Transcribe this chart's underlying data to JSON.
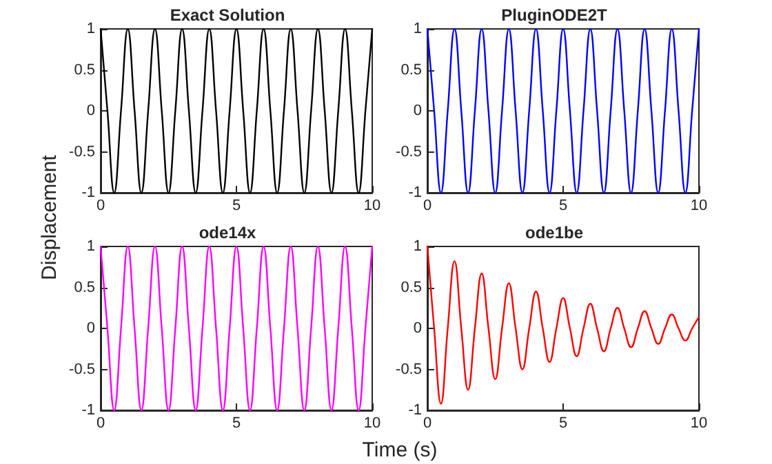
{
  "chart_data": [
    {
      "type": "line",
      "title": "Exact Solution",
      "x": [
        0,
        0.25,
        0.5,
        0.75,
        1,
        1.25,
        1.5,
        1.75,
        2,
        2.25,
        2.5,
        2.75,
        3,
        3.25,
        3.5,
        3.75,
        4,
        4.25,
        4.5,
        4.75,
        5,
        5.25,
        5.5,
        5.75,
        6,
        6.25,
        6.5,
        6.75,
        7,
        7.25,
        7.5,
        7.75,
        8,
        8.25,
        8.5,
        8.75,
        9,
        9.25,
        9.5,
        9.75,
        10
      ],
      "series": [
        {
          "color": "#000000",
          "values": [
            1,
            0,
            -1,
            0,
            1,
            0,
            -1,
            0,
            1,
            0,
            -1,
            0,
            1,
            0,
            -1,
            0,
            1,
            0,
            -1,
            0,
            1,
            0,
            -1,
            0,
            1,
            0,
            -1,
            0,
            1,
            0,
            -1,
            0,
            1,
            0,
            -1,
            0,
            1,
            0,
            -1,
            0,
            1
          ]
        }
      ],
      "xlim": [
        0,
        10
      ],
      "xticks": [
        0,
        5,
        10
      ],
      "ylim": [
        -1,
        1
      ],
      "yticks": [
        -1,
        -0.5,
        0,
        0.5,
        1
      ],
      "grid": false
    },
    {
      "type": "line",
      "title": "PluginODE2T",
      "x": [
        0,
        0.25,
        0.5,
        0.75,
        1,
        1.25,
        1.5,
        1.75,
        2,
        2.25,
        2.5,
        2.75,
        3,
        3.25,
        3.5,
        3.75,
        4,
        4.25,
        4.5,
        4.75,
        5,
        5.25,
        5.5,
        5.75,
        6,
        6.25,
        6.5,
        6.75,
        7,
        7.25,
        7.5,
        7.75,
        8,
        8.25,
        8.5,
        8.75,
        9,
        9.25,
        9.5,
        9.75,
        10
      ],
      "series": [
        {
          "color": "#0000ff",
          "values": [
            1,
            0,
            -1,
            0,
            1,
            0,
            -1,
            0,
            1,
            0,
            -1,
            0,
            1,
            0,
            -1,
            0,
            1,
            0,
            -1,
            0,
            1,
            0,
            -1,
            0,
            1,
            0,
            -1,
            0,
            1,
            0,
            -1,
            0,
            1,
            0,
            -1,
            0,
            1,
            0,
            -1,
            0,
            1
          ]
        }
      ],
      "xlim": [
        0,
        10
      ],
      "xticks": [
        0,
        5,
        10
      ],
      "ylim": [
        -1,
        1
      ],
      "yticks": [
        -1,
        -0.5,
        0,
        0.5,
        1
      ],
      "grid": false
    },
    {
      "type": "line",
      "title": "ode14x",
      "ylabel": "Displacement",
      "x": [
        0,
        0.25,
        0.5,
        0.75,
        1,
        1.25,
        1.5,
        1.75,
        2,
        2.25,
        2.5,
        2.75,
        3,
        3.25,
        3.5,
        3.75,
        4,
        4.25,
        4.5,
        4.75,
        5,
        5.25,
        5.5,
        5.75,
        6,
        6.25,
        6.5,
        6.75,
        7,
        7.25,
        7.5,
        7.75,
        8,
        8.25,
        8.5,
        8.75,
        9,
        9.25,
        9.5,
        9.75,
        10
      ],
      "series": [
        {
          "color": "#ff00ff",
          "values": [
            1,
            0,
            -1,
            0,
            1,
            0,
            -1,
            0,
            1,
            0,
            -1,
            0,
            1,
            0,
            -1,
            0,
            1,
            0,
            -1,
            0,
            1,
            0,
            -1,
            0,
            1,
            0,
            -1,
            0,
            1,
            0,
            -1,
            0,
            1,
            0,
            -1,
            0,
            1,
            0,
            -1,
            0,
            1
          ]
        }
      ],
      "xlim": [
        0,
        10
      ],
      "xticks": [
        0,
        5,
        10
      ],
      "ylim": [
        -1,
        1
      ],
      "yticks": [
        -1,
        -0.5,
        0,
        0.5,
        1
      ],
      "grid": false
    },
    {
      "type": "line",
      "title": "ode1be",
      "xlabel": "Time (s)",
      "x": [
        0,
        0.25,
        0.5,
        0.75,
        1,
        1.25,
        1.5,
        1.75,
        2,
        2.25,
        2.5,
        2.75,
        3,
        3.25,
        3.5,
        3.75,
        4,
        4.25,
        4.5,
        4.75,
        5,
        5.25,
        5.5,
        5.75,
        6,
        6.25,
        6.5,
        6.75,
        7,
        7.25,
        7.5,
        7.75,
        8,
        8.25,
        8.5,
        8.75,
        9,
        9.25,
        9.5,
        9.75,
        10
      ],
      "series": [
        {
          "color": "#ff0000",
          "values": [
            1,
            0,
            -0.92,
            0,
            0.82,
            0,
            -0.75,
            0,
            0.67,
            0,
            -0.62,
            0,
            0.55,
            0,
            -0.5,
            0,
            0.45,
            0,
            -0.41,
            0,
            0.37,
            0,
            -0.34,
            0,
            0.3,
            0,
            -0.28,
            0,
            0.25,
            0,
            -0.23,
            0,
            0.21,
            0,
            -0.19,
            0,
            0.17,
            0,
            -0.15,
            0,
            0.14
          ]
        }
      ],
      "xlim": [
        0,
        10
      ],
      "xticks": [
        0,
        5,
        10
      ],
      "ylim": [
        -1,
        1
      ],
      "yticks": [
        -1,
        -0.5,
        0,
        0.5,
        1
      ],
      "grid": false
    }
  ]
}
